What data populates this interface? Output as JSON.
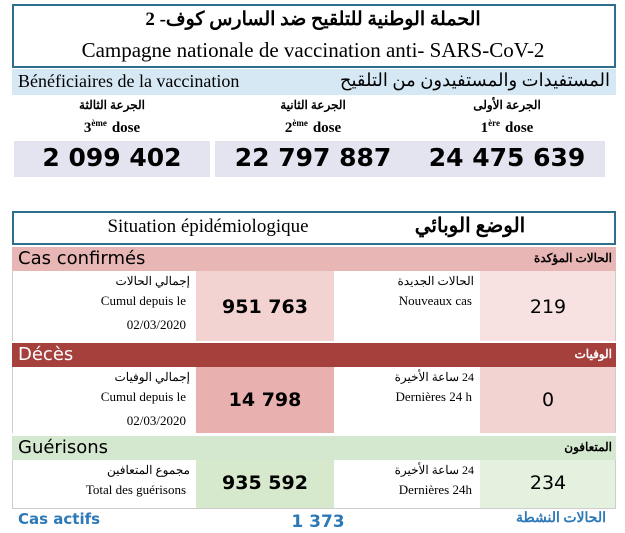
{
  "header": {
    "title_ar": "الحملة الوطنية للتلقيح ضد السارس كوف- 2",
    "title_fr": "Campagne nationale de vaccination anti- SARS-CoV-2"
  },
  "vaccination": {
    "label_fr": "Bénéficiaires de la vaccination",
    "label_ar": "المستفيدات والمستفيدون من التلقيح",
    "doses": [
      {
        "label_ar": "الجرعة الثالثة",
        "num": "3",
        "sup": "ème",
        "label": "dose",
        "value": "2 099 402"
      },
      {
        "label_ar": "الجرعة الثانية",
        "num": "2",
        "sup": "ème",
        "label": "dose",
        "value": "22 797 887"
      },
      {
        "label_ar": "الجرعة الأولى",
        "num": "1",
        "sup": "ère",
        "label": "dose",
        "value": "24 475 639"
      }
    ]
  },
  "situation": {
    "title_fr": "Situation épidémiologique",
    "title_ar": "الوضع الوبائي",
    "sections": [
      {
        "label_fr": "Cas confirmés",
        "label_ar": "الحالات المؤكدة",
        "total_ar": "إجمالي الحالات",
        "total_fr": "Cumul depuis le",
        "total_date": "02/03/2020",
        "total": "951 763",
        "recent_ar": "الحالات الجديدة",
        "recent_fr": "Nouveaux cas",
        "recent": "219"
      },
      {
        "label_fr": "Décès",
        "label_ar": "الوفيات",
        "total_ar": "إجمالي الوفيات",
        "total_fr": "Cumul depuis le",
        "total_date": "02/03/2020",
        "total": "14 798",
        "recent_ar": "24 ساعة الأخيرة",
        "recent_fr": "Dernières 24 h",
        "recent": "0"
      },
      {
        "label_fr": "Guérisons",
        "label_ar": "المتعافون",
        "total_ar": "مجموع المتعافين",
        "total_fr": "Total des guérisons",
        "total": "935 592",
        "recent_ar": "24 ساعة الأخيرة",
        "recent_fr": "Dernières 24h",
        "recent": "234"
      }
    ],
    "active": {
      "label_fr": "Cas actifs",
      "value": "1 373",
      "label_ar": "الحالات النشطة"
    }
  }
}
